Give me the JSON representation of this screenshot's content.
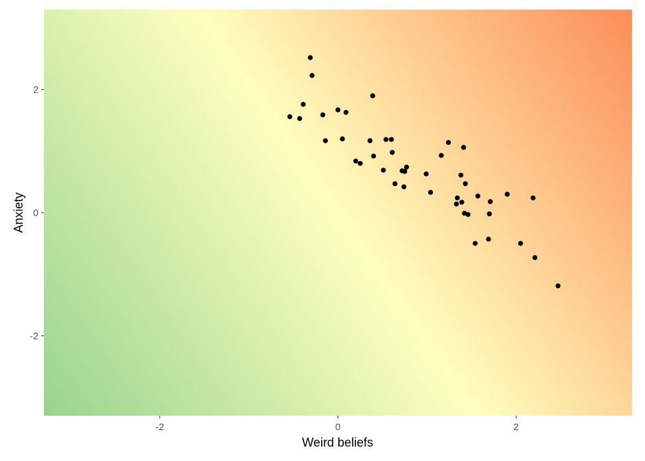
{
  "chart_data": {
    "type": "scatter",
    "title": "",
    "xlabel": "Weird beliefs",
    "ylabel": "Anxiety",
    "xlim": [
      -3.3,
      3.3
    ],
    "ylim": [
      -3.3,
      3.3
    ],
    "x_ticks": [
      -2,
      0,
      2
    ],
    "y_ticks": [
      -2,
      0,
      2
    ],
    "x_tick_labels": [
      "-2",
      "0",
      "2"
    ],
    "y_tick_labels": [
      "-2",
      "0",
      "2"
    ],
    "grid": false,
    "legend": "none",
    "background": "diagonal gradient: green (low x, low y) through pale yellow to orange (high x, high y)",
    "colors": {
      "low": "#98d48f",
      "mid": "#ffffbf",
      "high": "#fc8d59",
      "point": "#000000"
    },
    "points": [
      {
        "x": -0.31,
        "y": 2.52
      },
      {
        "x": -0.29,
        "y": 2.23
      },
      {
        "x": 0.39,
        "y": 1.9
      },
      {
        "x": -0.39,
        "y": 1.76
      },
      {
        "x": 0.0,
        "y": 1.67
      },
      {
        "x": 0.09,
        "y": 1.63
      },
      {
        "x": -0.17,
        "y": 1.59
      },
      {
        "x": -0.54,
        "y": 1.56
      },
      {
        "x": -0.43,
        "y": 1.53
      },
      {
        "x": 0.05,
        "y": 1.2
      },
      {
        "x": -0.14,
        "y": 1.17
      },
      {
        "x": 0.36,
        "y": 1.17
      },
      {
        "x": 0.54,
        "y": 1.19
      },
      {
        "x": 0.6,
        "y": 1.19
      },
      {
        "x": 1.24,
        "y": 1.14
      },
      {
        "x": 1.41,
        "y": 1.06
      },
      {
        "x": 0.61,
        "y": 0.98
      },
      {
        "x": 1.16,
        "y": 0.93
      },
      {
        "x": 0.4,
        "y": 0.92
      },
      {
        "x": 0.2,
        "y": 0.84
      },
      {
        "x": 0.25,
        "y": 0.8
      },
      {
        "x": 0.77,
        "y": 0.74
      },
      {
        "x": 0.51,
        "y": 0.69
      },
      {
        "x": 0.72,
        "y": 0.68
      },
      {
        "x": 0.75,
        "y": 0.67
      },
      {
        "x": 0.99,
        "y": 0.63
      },
      {
        "x": 1.38,
        "y": 0.61
      },
      {
        "x": 0.64,
        "y": 0.47
      },
      {
        "x": 1.43,
        "y": 0.47
      },
      {
        "x": 0.74,
        "y": 0.42
      },
      {
        "x": 1.04,
        "y": 0.33
      },
      {
        "x": 1.9,
        "y": 0.3
      },
      {
        "x": 1.57,
        "y": 0.27
      },
      {
        "x": 2.19,
        "y": 0.24
      },
      {
        "x": 1.34,
        "y": 0.24
      },
      {
        "x": 1.71,
        "y": 0.18
      },
      {
        "x": 1.39,
        "y": 0.17
      },
      {
        "x": 1.33,
        "y": 0.14
      },
      {
        "x": 1.42,
        "y": -0.01
      },
      {
        "x": 1.46,
        "y": -0.03
      },
      {
        "x": 1.7,
        "y": -0.02
      },
      {
        "x": 1.69,
        "y": -0.43
      },
      {
        "x": 1.54,
        "y": -0.5
      },
      {
        "x": 2.05,
        "y": -0.5
      },
      {
        "x": 2.21,
        "y": -0.73
      },
      {
        "x": 2.47,
        "y": -1.19
      }
    ]
  }
}
